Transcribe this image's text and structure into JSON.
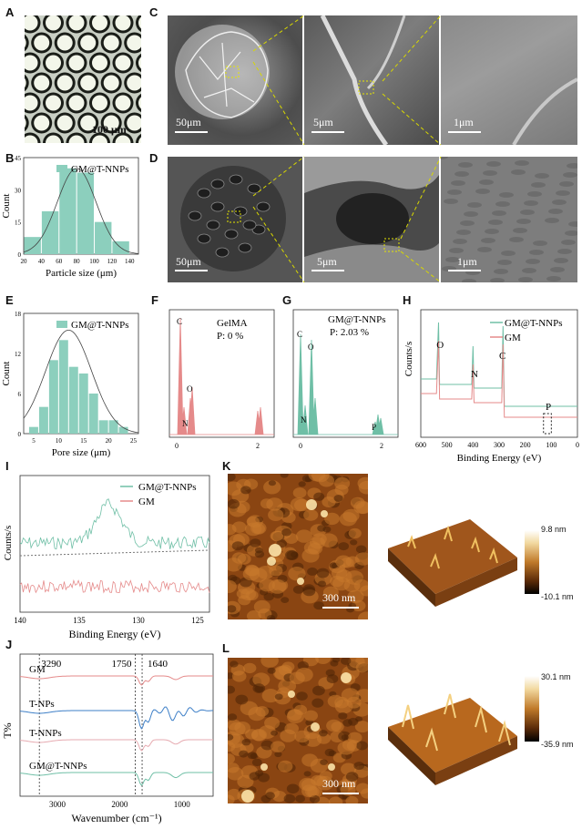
{
  "panels": {
    "A": {
      "label": "A",
      "scale_bar": "100 μm"
    },
    "B": {
      "label": "B"
    },
    "C": {
      "label": "C",
      "scale_bars": [
        "50μm",
        "5μm",
        "1μm"
      ]
    },
    "D": {
      "label": "D",
      "scale_bars": [
        "50μm",
        "5μm",
        "1μm"
      ]
    },
    "E": {
      "label": "E"
    },
    "F": {
      "label": "F",
      "title": "GelMA",
      "subtitle": "P:  0 %",
      "peaks": [
        "C",
        "N",
        "O"
      ]
    },
    "G": {
      "label": "G",
      "title": "GM@T-NNPs",
      "subtitle": "P: 2.03 %",
      "peaks": [
        "C",
        "O",
        "N",
        "P"
      ]
    },
    "H": {
      "label": "H",
      "peaks": [
        "O",
        "N",
        "C",
        "P"
      ]
    },
    "I": {
      "label": "I"
    },
    "J": {
      "label": "J",
      "annotations": [
        "3290",
        "1750",
        "1640"
      ],
      "series_labels": [
        "GM",
        "T-NPs",
        "T-NNPs",
        "GM@T-NNPs"
      ]
    },
    "K": {
      "label": "K",
      "scale_bar": "300 nm",
      "colorbar_max": "9.8 nm",
      "colorbar_min": "-10.1 nm"
    },
    "L": {
      "label": "L",
      "scale_bar": "300 nm",
      "colorbar_max": "30.1 nm",
      "colorbar_min": "-35.9 nm"
    }
  },
  "chart_data": [
    {
      "panel": "B",
      "type": "bar",
      "legend": "GM@T-NNPs",
      "xlabel": "Particle size (μm)",
      "ylabel": "Count",
      "xticks": [
        "20",
        "40",
        "60",
        "80",
        "100",
        "120",
        "140"
      ],
      "yticks": [
        "0",
        "15",
        "30",
        "45"
      ],
      "xlim": [
        20,
        150
      ],
      "ylim": [
        0,
        45
      ],
      "bins": [
        30,
        50,
        70,
        90,
        110,
        130
      ],
      "values": [
        8,
        20,
        40,
        38,
        15,
        6
      ]
    },
    {
      "panel": "E",
      "type": "bar",
      "legend": "GM@T-NNPs",
      "xlabel": "Pore size (μm)",
      "ylabel": "Count",
      "xticks": [
        "5",
        "10",
        "15",
        "20",
        "25"
      ],
      "yticks": [
        "0",
        "6",
        "12",
        "18"
      ],
      "xlim": [
        3,
        26
      ],
      "ylim": [
        0,
        18
      ],
      "bins": [
        5,
        7,
        9,
        11,
        13,
        15,
        17,
        19,
        21,
        23
      ],
      "values": [
        1,
        4,
        11,
        14,
        10,
        9,
        6,
        2,
        2,
        1
      ]
    },
    {
      "panel": "H",
      "type": "line",
      "xlabel": "Binding Energy (eV)",
      "ylabel": "Counts/s",
      "xticks": [
        "600",
        "500",
        "400",
        "300",
        "200",
        "100",
        "0"
      ],
      "xlim": [
        600,
        0
      ],
      "series": [
        {
          "name": "GM@T-NNPs",
          "color": "#6fbfa6"
        },
        {
          "name": "GM",
          "color": "#e58a8a"
        }
      ]
    },
    {
      "panel": "I",
      "type": "line",
      "xlabel": "Binding Energy (eV)",
      "ylabel": "Counts/s",
      "xticks": [
        "140",
        "135",
        "130",
        "125"
      ],
      "xlim": [
        140,
        124
      ],
      "series": [
        {
          "name": "GM@T-NNPs",
          "color": "#6fbfa6"
        },
        {
          "name": "GM",
          "color": "#e58a8a"
        }
      ]
    },
    {
      "panel": "J",
      "type": "line",
      "xlabel": "Wavenumber  (cm⁻¹)",
      "ylabel": "T%",
      "xticks": [
        "3000",
        "2000",
        "1000"
      ],
      "xlim": [
        3600,
        500
      ],
      "series": [
        {
          "name": "GM",
          "color": "#e58a8a"
        },
        {
          "name": "T-NPs",
          "color": "#3d7fc7"
        },
        {
          "name": "T-NNPs",
          "color": "#e6aab0"
        },
        {
          "name": "GM@T-NNPs",
          "color": "#6fbfa6"
        }
      ]
    }
  ],
  "colors": {
    "teal": "#8ccfbd",
    "red": "#e58a8a",
    "blue": "#3d7fc7"
  }
}
